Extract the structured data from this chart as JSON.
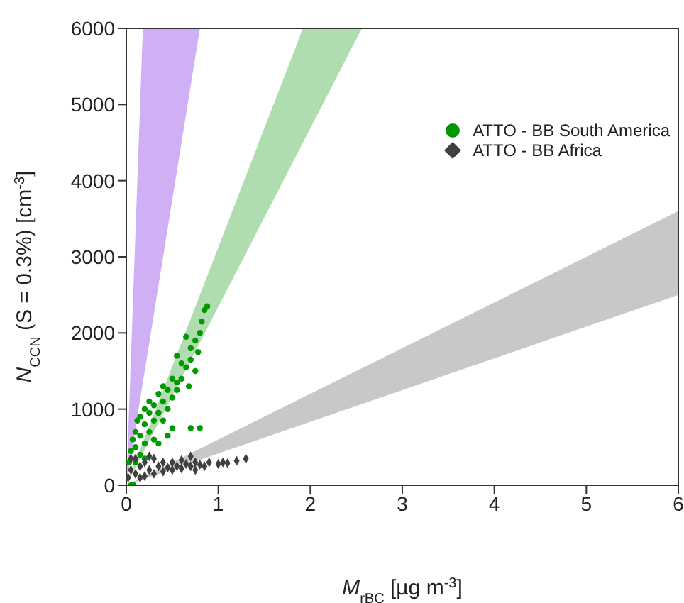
{
  "chart_data": {
    "type": "scatter",
    "xlabel": "M$_{rBC}$ [µg m$^{-3}$]",
    "ylabel": "N$_{CCN}$ (S = 0.3%) [cm$^{-3}$]",
    "xlim": [
      0,
      6
    ],
    "xticks": [
      0,
      1,
      2,
      3,
      4,
      5,
      6
    ],
    "ylim": [
      0,
      6000
    ],
    "yticks": [
      0,
      1000,
      2000,
      3000,
      4000,
      5000,
      6000
    ],
    "grid": false,
    "legend": "top right",
    "series": [
      {
        "type": "area",
        "color": "#d0b0f5",
        "x": [
          0,
          0.18,
          0.8
        ],
        "values": [
          null,
          null,
          null
        ],
        "lower": [
          0,
          1350,
          6000
        ],
        "upper": [
          0,
          6000,
          6000
        ]
      },
      {
        "type": "area",
        "color": "#b0ddb0",
        "x": [
          0,
          1.92,
          2.56
        ],
        "values": [
          null,
          null,
          null
        ],
        "lower": [
          0,
          4500,
          6000
        ],
        "upper": [
          0,
          6000,
          6000
        ]
      },
      {
        "type": "area",
        "color": "#c8c8c8",
        "x": [
          0,
          6
        ],
        "values": [
          null,
          null
        ],
        "lower": [
          0,
          2500
        ],
        "upper": [
          0,
          3600
        ]
      },
      {
        "name": "ATTO - BB South America",
        "color": "#009900",
        "marker": "circle",
        "x": [
          0.05,
          0.08,
          0.03,
          0.05,
          0.07,
          0.1,
          0.12,
          0.15,
          0.1,
          0.15,
          0.2,
          0.2,
          0.25,
          0.25,
          0.3,
          0.3,
          0.35,
          0.35,
          0.4,
          0.4,
          0.45,
          0.45,
          0.5,
          0.5,
          0.55,
          0.55,
          0.6,
          0.6,
          0.65,
          0.7,
          0.7,
          0.75,
          0.75,
          0.8,
          0.82,
          0.85,
          0.88,
          0.78,
          0.68,
          0.7,
          0.8,
          0.5,
          0.45,
          0.35,
          0.3,
          0.25,
          0.2,
          0.15,
          0.4,
          0.55,
          0.65,
          0.1,
          0.2
        ],
        "values": [
          0,
          0,
          300,
          450,
          600,
          700,
          850,
          650,
          500,
          900,
          800,
          1000,
          950,
          1100,
          1050,
          850,
          1200,
          950,
          1300,
          1100,
          1250,
          1000,
          1400,
          1150,
          1350,
          1250,
          1600,
          1400,
          1550,
          1650,
          1800,
          1500,
          1900,
          2000,
          2150,
          2300,
          2350,
          1750,
          1300,
          750,
          750,
          750,
          650,
          550,
          600,
          700,
          550,
          400,
          850,
          1700,
          1950,
          300,
          350
        ]
      },
      {
        "name": "ATTO - BB Africa",
        "color": "#404040",
        "marker": "diamond",
        "x": [
          0.02,
          0.05,
          0.1,
          0.1,
          0.15,
          0.2,
          0.2,
          0.25,
          0.3,
          0.3,
          0.35,
          0.4,
          0.4,
          0.45,
          0.5,
          0.5,
          0.55,
          0.6,
          0.6,
          0.65,
          0.7,
          0.7,
          0.75,
          0.8,
          0.85,
          0.9,
          1.0,
          1.05,
          1.1,
          1.2,
          1.3,
          0.05,
          0.15,
          0.25,
          0.75
        ],
        "values": [
          100,
          200,
          150,
          350,
          250,
          120,
          300,
          200,
          150,
          350,
          250,
          180,
          300,
          230,
          200,
          300,
          250,
          220,
          330,
          280,
          250,
          380,
          300,
          270,
          250,
          300,
          280,
          300,
          290,
          320,
          350,
          350,
          100,
          380,
          200
        ]
      }
    ]
  }
}
